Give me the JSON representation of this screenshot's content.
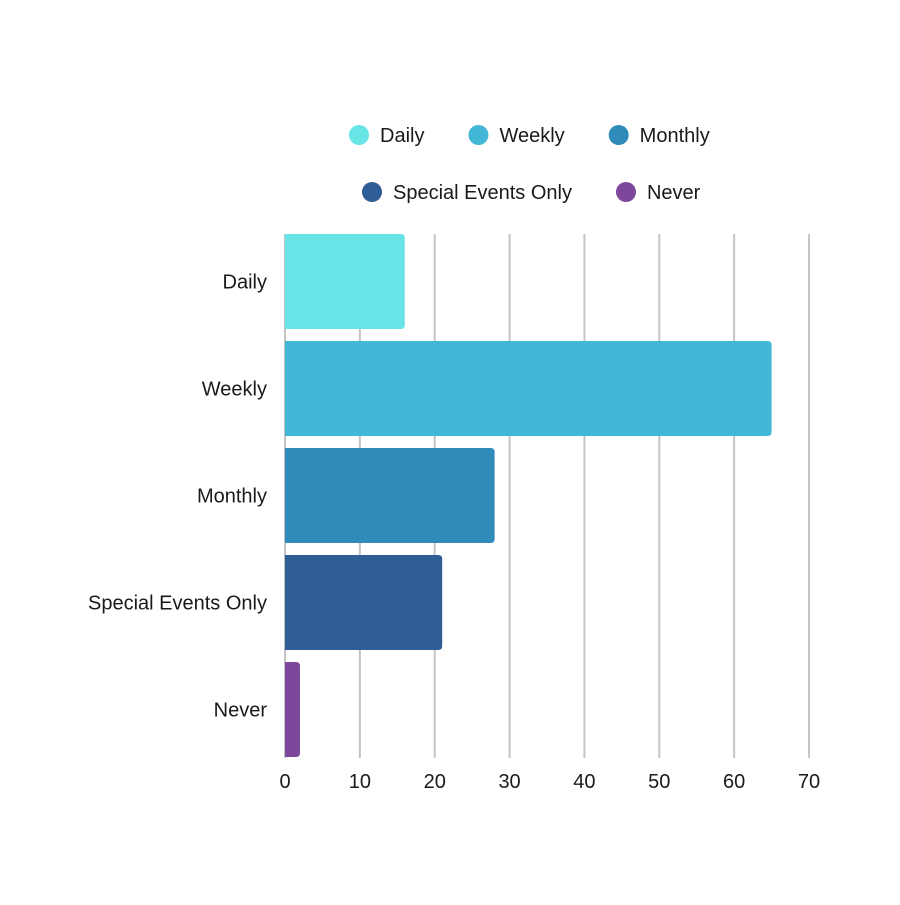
{
  "chart_data": {
    "type": "bar",
    "orientation": "horizontal",
    "title": "",
    "xlabel": "",
    "ylabel": "",
    "categories": [
      "Daily",
      "Weekly",
      "Monthly",
      "Special Events Only",
      "Never"
    ],
    "values": [
      16,
      65,
      28,
      21,
      2
    ],
    "colors": [
      "#69e4e6",
      "#43b8d6",
      "#2e8bba",
      "#2f5e97",
      "#7d479b"
    ],
    "xlim": [
      0,
      70
    ],
    "xticks": [
      0,
      10,
      20,
      30,
      40,
      50,
      60,
      70
    ],
    "grid": "vertical",
    "legend": {
      "placement": "top",
      "entries": [
        {
          "label": "Daily",
          "color": "#69e4e6"
        },
        {
          "label": "Weekly",
          "color": "#43b8d6"
        },
        {
          "label": "Monthly",
          "color": "#2e8bba"
        },
        {
          "label": "Special Events Only",
          "color": "#2f5e97"
        },
        {
          "label": "Never",
          "color": "#7d479b"
        }
      ]
    }
  }
}
